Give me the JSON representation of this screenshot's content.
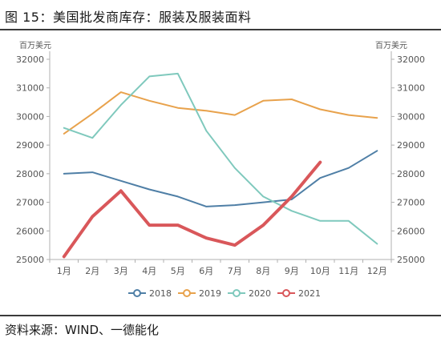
{
  "header": {
    "title": "图 15：美国批发商库存：服装及服装面料"
  },
  "footer": {
    "source": "资料来源：WIND、一德能化"
  },
  "chart_data": {
    "type": "line",
    "categories": [
      "1月",
      "2月",
      "3月",
      "4月",
      "5月",
      "6月",
      "7月",
      "8月",
      "9月",
      "10月",
      "11月",
      "12月"
    ],
    "y_unit_left": "百万美元",
    "y_unit_right": "百万美元",
    "ylim": [
      25000,
      32000
    ],
    "yticks": [
      25000,
      26000,
      27000,
      28000,
      29000,
      30000,
      31000,
      32000
    ],
    "grid": false,
    "legend_position": "bottom",
    "series": [
      {
        "name": "2018",
        "color": "#4f7fa6",
        "width": 2,
        "values": [
          28000,
          28050,
          27750,
          27450,
          27200,
          26850,
          26900,
          27000,
          27100,
          27850,
          28200,
          28800
        ]
      },
      {
        "name": "2019",
        "color": "#e8a24c",
        "width": 2,
        "values": [
          29400,
          30100,
          30850,
          30550,
          30300,
          30200,
          30050,
          30550,
          30600,
          30250,
          30050,
          29950
        ]
      },
      {
        "name": "2020",
        "color": "#7fc9bd",
        "width": 2,
        "values": [
          29600,
          29250,
          30400,
          31400,
          31500,
          29500,
          28200,
          27200,
          26700,
          26350,
          26350,
          25550
        ]
      },
      {
        "name": "2021",
        "color": "#d9575a",
        "width": 4,
        "values": [
          25100,
          26500,
          27400,
          26200,
          26200,
          25750,
          25500,
          26200,
          27200,
          28400,
          null,
          null
        ]
      }
    ]
  }
}
